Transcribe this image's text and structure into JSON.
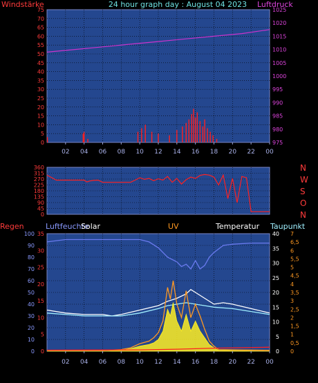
{
  "chart_data": [
    {
      "type": "line",
      "title": "24 hour graph day : August 04 2023",
      "ylabel_left": "Windstärke",
      "ylabel_right": "Luftdruck",
      "x_ticks": [
        "02",
        "04",
        "06",
        "08",
        "10",
        "12",
        "14",
        "16",
        "18",
        "20",
        "22",
        "00"
      ],
      "y_left_ticks": [
        "0",
        "5",
        "10",
        "15",
        "20",
        "25",
        "30",
        "35",
        "40",
        "45",
        "50",
        "55",
        "60",
        "65",
        "70",
        "75"
      ],
      "y_left_range": [
        0,
        75
      ],
      "y_right_ticks": [
        "975",
        "980",
        "985",
        "990",
        "995",
        "1000",
        "1005",
        "1010",
        "1015",
        "1020",
        "1025"
      ],
      "y_right_range": [
        975,
        1025
      ],
      "grid": true,
      "series": [
        {
          "color": "#cc33cc",
          "x": [
            0,
            3,
            6,
            9,
            12,
            15,
            18,
            21,
            24
          ],
          "values": [
            1009,
            1010,
            1011,
            1012,
            1013,
            1014,
            1015,
            1016,
            1017.5
          ]
        },
        {
          "color": "#ff2020",
          "x": [
            0.05,
            3.9,
            4.0,
            4.4,
            9.8,
            10.2,
            10.6,
            11.3,
            12.0,
            13.2,
            14.0,
            14.6,
            15.0,
            15.3,
            15.6,
            15.8,
            16.0,
            16.2,
            16.5,
            16.8,
            17.0,
            17.3,
            17.6,
            17.9,
            18.3
          ],
          "values": [
            3,
            5,
            6,
            2,
            6,
            8,
            10,
            6,
            5,
            4,
            7,
            9,
            11,
            13,
            16,
            19,
            14,
            17,
            12,
            9,
            13,
            8,
            6,
            4,
            2
          ]
        }
      ]
    },
    {
      "type": "line",
      "ylabel_right": [
        "N",
        "W",
        "S",
        "O",
        "N"
      ],
      "y_left_ticks": [
        "0",
        "45",
        "90",
        "135",
        "180",
        "225",
        "270",
        "315",
        "360"
      ],
      "y_left_range": [
        0,
        360
      ],
      "grid": true,
      "series": [
        {
          "color": "#ff2020",
          "x": [
            0,
            1,
            2,
            3,
            4,
            4.3,
            4.6,
            5,
            5.5,
            6,
            7,
            8,
            9,
            9.5,
            10,
            10.5,
            11,
            11.5,
            12,
            12.5,
            13,
            13.5,
            14,
            14.5,
            15,
            15.5,
            16,
            16.5,
            17,
            17.5,
            18,
            18.5,
            19,
            19.5,
            20,
            20.5,
            21,
            21.5,
            22,
            23,
            24
          ],
          "values": [
            300,
            262,
            262,
            262,
            262,
            248,
            255,
            260,
            262,
            245,
            245,
            245,
            245,
            262,
            280,
            268,
            275,
            258,
            272,
            262,
            290,
            245,
            275,
            232,
            265,
            285,
            275,
            298,
            305,
            300,
            285,
            225,
            300,
            120,
            275,
            90,
            290,
            280,
            20,
            20,
            20
          ]
        }
      ]
    },
    {
      "type": "line",
      "labels": [
        "Regen",
        "Luftfeuchte",
        "Solar",
        "UV",
        "Temperatur",
        "Taupunkt"
      ],
      "x_ticks": [
        "02",
        "04",
        "06",
        "08",
        "10",
        "12",
        "14",
        "16",
        "18",
        "20",
        "22",
        "00"
      ],
      "y_humidity_ticks": [
        "0",
        "10",
        "20",
        "30",
        "40",
        "50",
        "60",
        "70",
        "80",
        "90",
        "100"
      ],
      "y_humidity_range": [
        0,
        100
      ],
      "y_rain_ticks": [
        "0",
        "5",
        "10",
        "15",
        "20",
        "25",
        "30",
        "35"
      ],
      "y_rain_range": [
        0,
        35
      ],
      "y_temp_ticks": [
        "0",
        "5",
        "10",
        "15",
        "20",
        "25",
        "30",
        "35",
        "40"
      ],
      "y_temp_range": [
        0,
        40
      ],
      "y_uv_ticks": [
        "0",
        "0,5",
        "1",
        "1,5",
        "2",
        "2,5",
        "3",
        "3,5",
        "4",
        "4,5",
        "5",
        "5,5",
        "6",
        "6,5",
        "7"
      ],
      "y_uv_range": [
        0,
        7
      ],
      "grid": true,
      "series": [
        {
          "color": "#6a7aee",
          "axis": "humidity",
          "x": [
            0,
            2,
            4,
            6,
            8,
            10,
            11,
            12,
            13,
            14,
            14.5,
            15,
            15.5,
            16,
            16.5,
            17,
            17.5,
            18,
            19,
            20,
            22,
            24
          ],
          "values": [
            93,
            95,
            95,
            95,
            95,
            95,
            93,
            88,
            80,
            76,
            72,
            74,
            70,
            77,
            70,
            73,
            80,
            84,
            90,
            91,
            92,
            92
          ]
        },
        {
          "color": "#ffffff",
          "axis": "temp",
          "x": [
            0,
            2,
            4,
            6,
            7,
            8,
            10,
            12,
            13,
            14,
            15,
            15.5,
            16,
            17,
            18,
            19,
            20,
            22,
            24
          ],
          "values": [
            14,
            13,
            12.5,
            12.5,
            12,
            12.5,
            14,
            15.5,
            17,
            18,
            19.5,
            21,
            20,
            18,
            16,
            16.5,
            16,
            14.5,
            13
          ]
        },
        {
          "color": "#a0f0ff",
          "axis": "temp",
          "x": [
            0,
            2,
            4,
            6,
            8,
            10,
            12,
            13,
            14,
            15,
            16,
            17,
            18,
            20,
            22,
            24
          ],
          "values": [
            13,
            12.5,
            12,
            12,
            12,
            13,
            14.5,
            15.5,
            16,
            16.5,
            16,
            15.5,
            15,
            14.5,
            13.5,
            12.5
          ]
        },
        {
          "color": "#ffee22",
          "axis": "uv",
          "fill": true,
          "x": [
            0,
            6,
            8,
            9,
            10,
            11,
            11.5,
            12,
            12.5,
            13,
            13.3,
            13.6,
            14,
            14.5,
            15,
            15.5,
            16,
            16.5,
            17,
            17.5,
            18,
            18.5,
            24
          ],
          "values": [
            0,
            0,
            0.05,
            0.15,
            0.3,
            0.4,
            0.5,
            0.7,
            1.2,
            2.5,
            2.1,
            2.9,
            1.8,
            1.2,
            2.2,
            1.2,
            1.8,
            1.2,
            0.8,
            0.4,
            0.2,
            0.05,
            0
          ]
        },
        {
          "color": "#ff9922",
          "axis": "uv",
          "x": [
            0,
            6,
            8,
            9,
            10,
            11,
            11.5,
            12,
            12.5,
            13,
            13.3,
            13.6,
            14,
            14.5,
            15,
            15.5,
            16,
            16.5,
            17,
            17.5,
            18,
            18.5,
            24
          ],
          "values": [
            0.05,
            0.05,
            0.1,
            0.2,
            0.45,
            0.6,
            0.8,
            1.1,
            1.8,
            3.8,
            3.1,
            4.2,
            2.8,
            2.0,
            3.6,
            2.0,
            2.8,
            2.1,
            1.3,
            0.6,
            0.3,
            0.1,
            0.05
          ]
        },
        {
          "color": "#ff2020",
          "axis": "rain",
          "x": [
            0,
            10,
            14,
            18,
            24
          ],
          "values": [
            0.3,
            0.4,
            0.6,
            0.9,
            1.2
          ]
        }
      ]
    }
  ]
}
